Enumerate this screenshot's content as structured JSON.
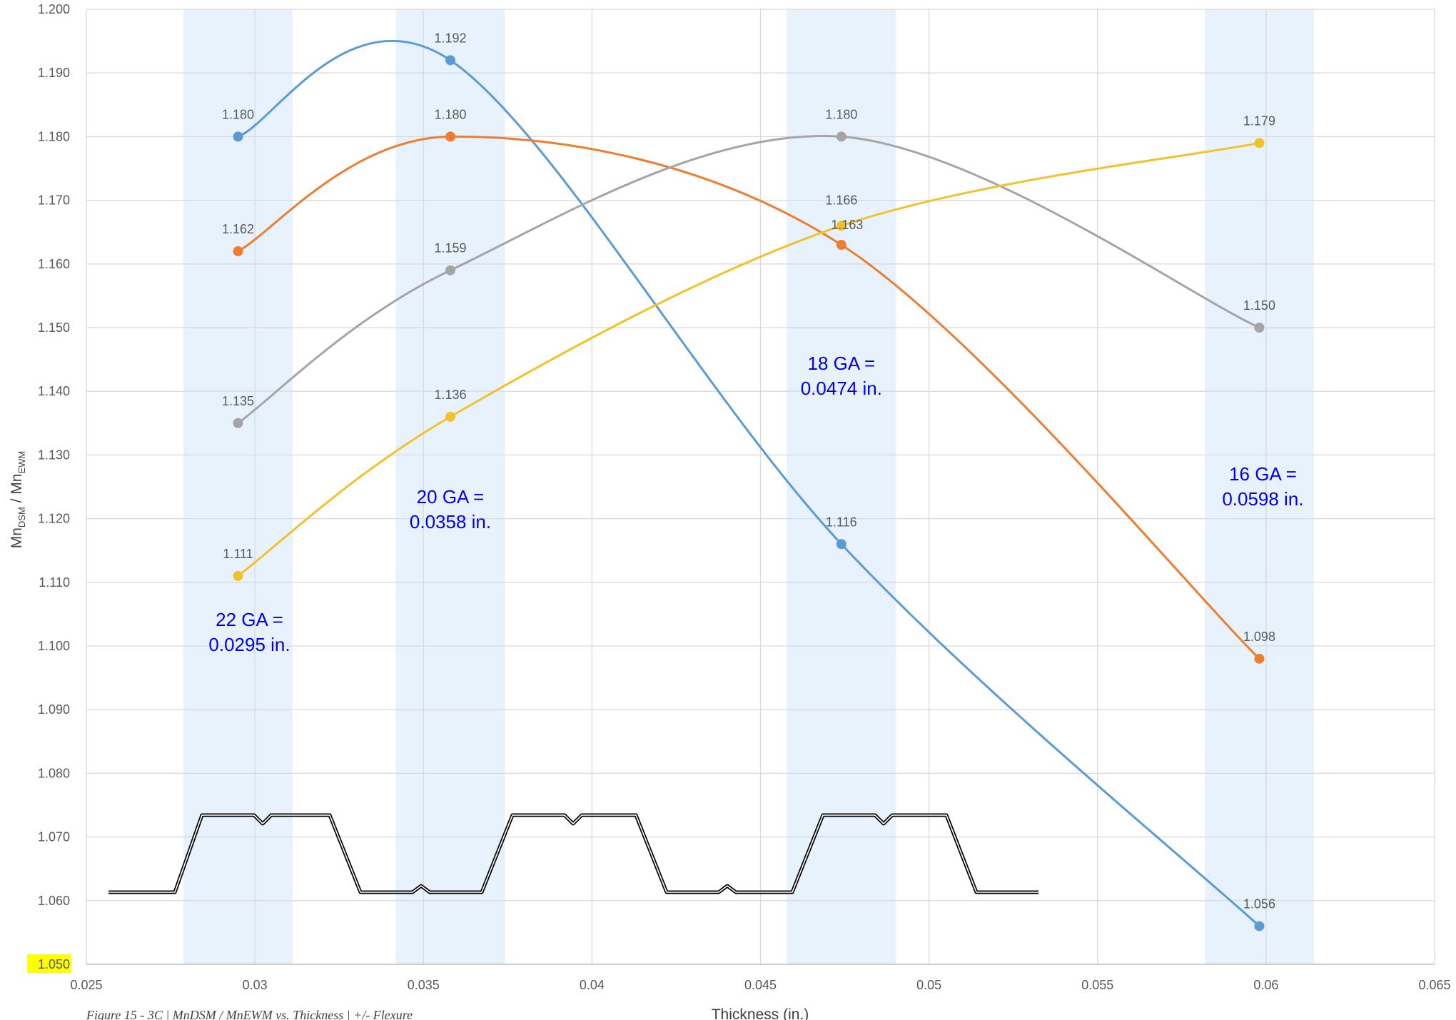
{
  "chart_data": {
    "type": "line",
    "title": "",
    "caption": "Figure 15 - 3C | MnDSM / MnEWM vs. Thickness | +/- Flexure",
    "xlabel": "Thickness (in.)",
    "ylabel": {
      "main": "Mn",
      "sub1": "DSM",
      "sep": " / Mn",
      "sub2": "EWM"
    },
    "xlim": [
      0.025,
      0.065
    ],
    "ylim": [
      1.05,
      1.2
    ],
    "x_ticks": [
      "0.025",
      "0.03",
      "0.035",
      "0.04",
      "0.045",
      "0.05",
      "0.055",
      "0.06",
      "0.065"
    ],
    "y_ticks": [
      "1.050",
      "1.060",
      "1.070",
      "1.080",
      "1.090",
      "1.100",
      "1.110",
      "1.120",
      "1.130",
      "1.140",
      "1.150",
      "1.160",
      "1.170",
      "1.180",
      "1.190",
      "1.200"
    ],
    "highlighted_y_tick": "1.050",
    "grid": true,
    "x": [
      0.0295,
      0.0358,
      0.0474,
      0.0598
    ],
    "series": [
      {
        "color": "#5b9bd5",
        "values": [
          1.18,
          1.192,
          1.116,
          1.056
        ],
        "labels": [
          "1.180",
          "1.192",
          "1.116",
          "1.056"
        ]
      },
      {
        "color": "#ed7d31",
        "values": [
          1.162,
          1.18,
          1.163,
          1.098
        ],
        "labels": [
          "1.162",
          "1.180",
          "1.163",
          "1.098"
        ]
      },
      {
        "color": "#a5a5a5",
        "values": [
          1.135,
          1.159,
          1.18,
          1.15
        ],
        "labels": [
          "1.135",
          "1.159",
          "1.180",
          "1.150"
        ]
      },
      {
        "color": "#f2c12e",
        "values": [
          1.111,
          1.136,
          1.166,
          1.179
        ],
        "labels": [
          "1.111",
          "1.136",
          "1.166",
          "1.179"
        ]
      }
    ],
    "gauge_bands": [
      {
        "x": 0.0295,
        "line1": "22 GA =",
        "line2": "0.0295 in."
      },
      {
        "x": 0.0358,
        "line1": "20 GA =",
        "line2": "0.0358 in."
      },
      {
        "x": 0.0474,
        "line1": "18 GA =",
        "line2": "0.0474 in."
      },
      {
        "x": 0.0598,
        "line1": "16 GA =",
        "line2": "0.0598 in."
      }
    ],
    "colors": {
      "band": "#e7f2fd",
      "grid": "#d9d9d9",
      "gauge_text": "#0000ee",
      "highlight": "#ffff00"
    }
  }
}
